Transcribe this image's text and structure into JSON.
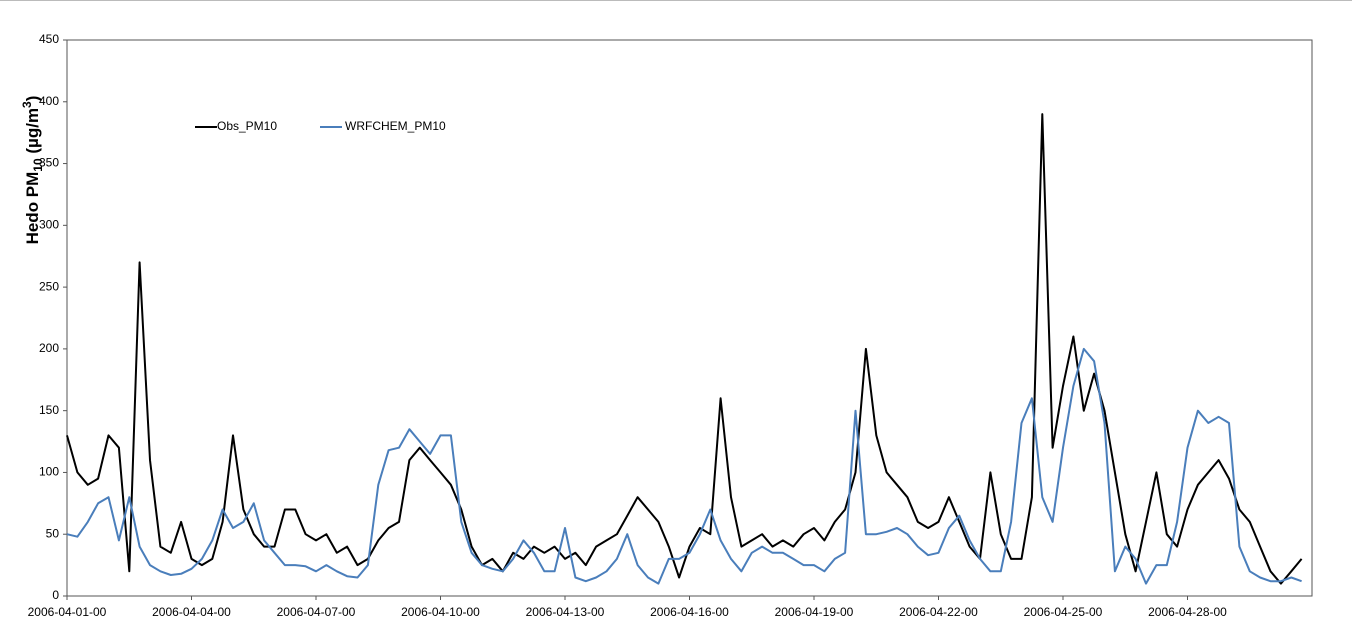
{
  "chart_data": {
    "type": "line",
    "y_label": {
      "main": "Hedo PM",
      "sub": "10",
      "mid": " (µg/m",
      "sup": "3",
      "end": ")"
    },
    "categories": [
      "2006-04-01-00",
      null,
      null,
      null,
      null,
      null,
      null,
      null,
      null,
      null,
      null,
      null,
      "2006-04-04-00",
      null,
      null,
      null,
      null,
      null,
      null,
      null,
      null,
      null,
      null,
      null,
      "2006-04-07-00",
      null,
      null,
      null,
      null,
      null,
      null,
      null,
      null,
      null,
      null,
      null,
      "2006-04-10-00",
      null,
      null,
      null,
      null,
      null,
      null,
      null,
      null,
      null,
      null,
      null,
      "2006-04-13-00",
      null,
      null,
      null,
      null,
      null,
      null,
      null,
      null,
      null,
      null,
      null,
      "2006-04-16-00",
      null,
      null,
      null,
      null,
      null,
      null,
      null,
      null,
      null,
      null,
      null,
      "2006-04-19-00",
      null,
      null,
      null,
      null,
      null,
      null,
      null,
      null,
      null,
      null,
      null,
      "2006-04-22-00",
      null,
      null,
      null,
      null,
      null,
      null,
      null,
      null,
      null,
      null,
      null,
      "2006-04-25-00",
      null,
      null,
      null,
      null,
      null,
      null,
      null,
      null,
      null,
      null,
      null,
      "2006-04-28-00",
      null,
      null,
      null,
      null,
      null,
      null,
      null,
      null,
      null,
      null,
      null
    ],
    "series": [
      {
        "name": "Obs_PM10",
        "color": "#000000",
        "values": [
          130,
          100,
          90,
          95,
          130,
          120,
          20,
          270,
          110,
          40,
          35,
          60,
          30,
          25,
          30,
          60,
          130,
          70,
          50,
          40,
          40,
          70,
          70,
          50,
          45,
          50,
          35,
          40,
          25,
          30,
          45,
          55,
          60,
          110,
          120,
          110,
          100,
          90,
          70,
          40,
          25,
          30,
          20,
          35,
          30,
          40,
          35,
          40,
          30,
          35,
          25,
          40,
          45,
          50,
          65,
          80,
          70,
          60,
          40,
          15,
          40,
          55,
          50,
          160,
          80,
          40,
          45,
          50,
          40,
          45,
          40,
          50,
          55,
          45,
          60,
          70,
          100,
          200,
          130,
          100,
          90,
          80,
          60,
          55,
          60,
          80,
          60,
          40,
          30,
          100,
          50,
          30,
          30,
          80,
          390,
          120,
          170,
          210,
          150,
          180,
          150,
          100,
          50,
          20,
          60,
          100,
          50,
          40,
          70,
          90,
          100,
          110,
          95,
          70,
          60,
          40,
          20,
          10,
          20,
          30
        ]
      },
      {
        "name": "WRFCHEM_PM10",
        "color": "#4a7ebb",
        "values": [
          50,
          48,
          60,
          75,
          80,
          45,
          80,
          40,
          25,
          20,
          17,
          18,
          22,
          30,
          45,
          70,
          55,
          60,
          75,
          45,
          35,
          25,
          25,
          24,
          20,
          25,
          20,
          16,
          15,
          25,
          90,
          118,
          120,
          135,
          125,
          115,
          130,
          130,
          60,
          35,
          25,
          22,
          20,
          30,
          45,
          35,
          20,
          20,
          55,
          15,
          12,
          15,
          20,
          30,
          50,
          25,
          15,
          10,
          30,
          30,
          35,
          50,
          70,
          45,
          30,
          20,
          35,
          40,
          35,
          35,
          30,
          25,
          25,
          20,
          30,
          35,
          150,
          50,
          50,
          52,
          55,
          50,
          40,
          33,
          35,
          55,
          65,
          45,
          30,
          20,
          20,
          60,
          140,
          160,
          80,
          60,
          120,
          170,
          200,
          190,
          140,
          20,
          40,
          30,
          10,
          25,
          25,
          60,
          120,
          150,
          140,
          145,
          140,
          40,
          20,
          15,
          12,
          12,
          15,
          12
        ]
      }
    ],
    "ylim": [
      0,
      450
    ],
    "yticks": [
      0,
      50,
      100,
      150,
      200,
      250,
      300,
      350,
      400,
      450
    ],
    "legend": "upper-left"
  }
}
